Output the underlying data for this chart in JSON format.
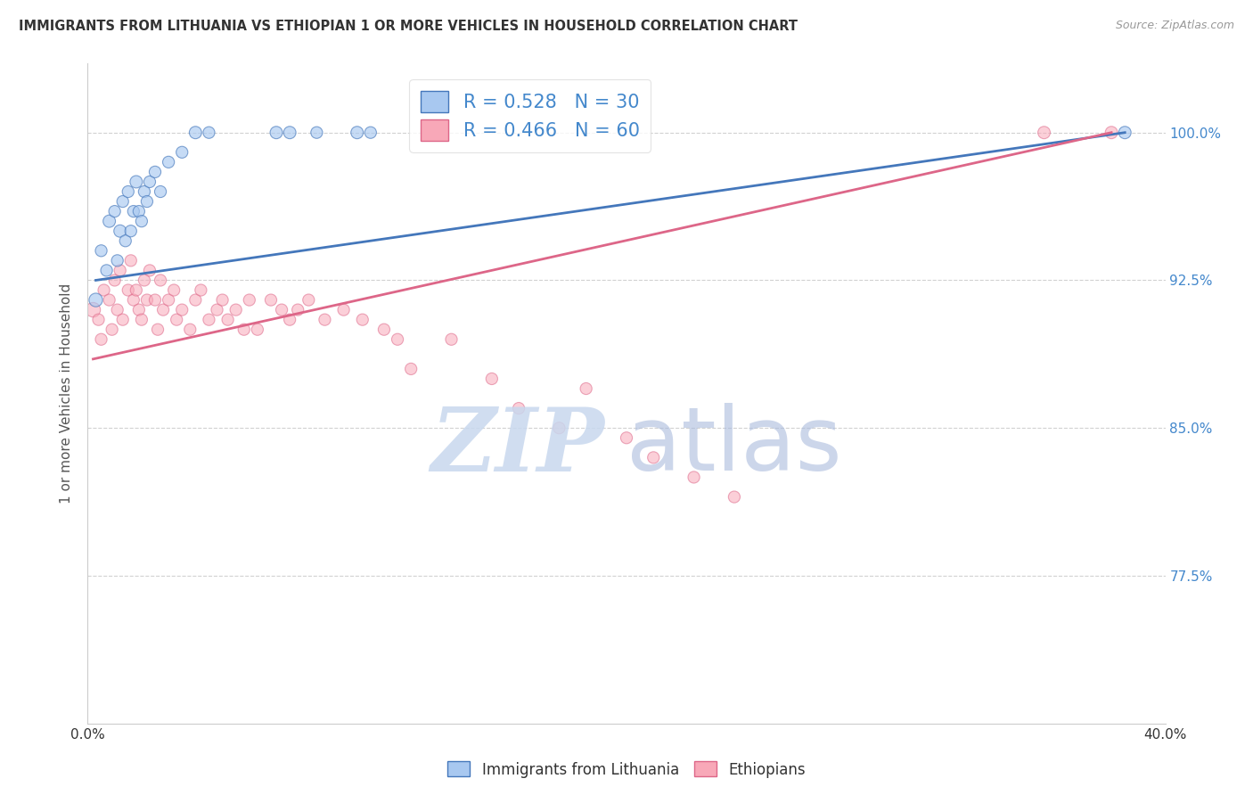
{
  "title": "IMMIGRANTS FROM LITHUANIA VS ETHIOPIAN 1 OR MORE VEHICLES IN HOUSEHOLD CORRELATION CHART",
  "source": "Source: ZipAtlas.com",
  "ylabel": "1 or more Vehicles in Household",
  "ylabel_right_ticks": [
    77.5,
    85.0,
    92.5,
    100.0
  ],
  "xlim": [
    0.0,
    40.0
  ],
  "ylim": [
    70.0,
    103.5
  ],
  "legend1_label": "R = 0.528   N = 30",
  "legend2_label": "R = 0.466   N = 60",
  "blue_color": "#A8C8F0",
  "pink_color": "#F8A8B8",
  "blue_line_color": "#4477BB",
  "pink_line_color": "#DD6688",
  "background_color": "#FFFFFF",
  "lithuania_x": [
    0.3,
    0.5,
    0.7,
    0.8,
    1.0,
    1.1,
    1.2,
    1.3,
    1.4,
    1.5,
    1.6,
    1.7,
    1.8,
    1.9,
    2.0,
    2.1,
    2.2,
    2.3,
    2.5,
    2.7,
    3.0,
    3.5,
    4.0,
    4.5,
    7.0,
    7.5,
    8.5,
    10.0,
    10.5,
    38.5
  ],
  "lithuania_y": [
    91.5,
    94.0,
    93.0,
    95.5,
    96.0,
    93.5,
    95.0,
    96.5,
    94.5,
    97.0,
    95.0,
    96.0,
    97.5,
    96.0,
    95.5,
    97.0,
    96.5,
    97.5,
    98.0,
    97.0,
    98.5,
    99.0,
    100.0,
    100.0,
    100.0,
    100.0,
    100.0,
    100.0,
    100.0,
    100.0
  ],
  "lithuania_sizes": [
    120,
    90,
    90,
    100,
    90,
    90,
    100,
    90,
    90,
    90,
    90,
    90,
    100,
    90,
    90,
    90,
    90,
    90,
    90,
    90,
    90,
    90,
    100,
    90,
    100,
    100,
    90,
    100,
    90,
    100
  ],
  "ethiopian_x": [
    0.2,
    0.4,
    0.5,
    0.6,
    0.8,
    0.9,
    1.0,
    1.1,
    1.2,
    1.3,
    1.5,
    1.6,
    1.7,
    1.8,
    1.9,
    2.0,
    2.1,
    2.2,
    2.3,
    2.5,
    2.6,
    2.7,
    2.8,
    3.0,
    3.2,
    3.3,
    3.5,
    3.8,
    4.0,
    4.2,
    4.5,
    4.8,
    5.0,
    5.2,
    5.5,
    5.8,
    6.0,
    6.3,
    6.8,
    7.2,
    7.5,
    7.8,
    8.2,
    8.8,
    9.5,
    10.2,
    11.0,
    11.5,
    12.0,
    13.5,
    15.0,
    16.0,
    17.5,
    18.5,
    20.0,
    21.0,
    22.5,
    24.0,
    35.5,
    38.0
  ],
  "ethiopian_y": [
    91.0,
    90.5,
    89.5,
    92.0,
    91.5,
    90.0,
    92.5,
    91.0,
    93.0,
    90.5,
    92.0,
    93.5,
    91.5,
    92.0,
    91.0,
    90.5,
    92.5,
    91.5,
    93.0,
    91.5,
    90.0,
    92.5,
    91.0,
    91.5,
    92.0,
    90.5,
    91.0,
    90.0,
    91.5,
    92.0,
    90.5,
    91.0,
    91.5,
    90.5,
    91.0,
    90.0,
    91.5,
    90.0,
    91.5,
    91.0,
    90.5,
    91.0,
    91.5,
    90.5,
    91.0,
    90.5,
    90.0,
    89.5,
    88.0,
    89.5,
    87.5,
    86.0,
    85.0,
    87.0,
    84.5,
    83.5,
    82.5,
    81.5,
    100.0,
    100.0
  ],
  "ethiopian_sizes": [
    140,
    90,
    90,
    90,
    90,
    90,
    90,
    90,
    90,
    90,
    90,
    90,
    90,
    90,
    90,
    90,
    90,
    90,
    90,
    90,
    90,
    90,
    90,
    90,
    90,
    90,
    90,
    90,
    90,
    90,
    90,
    90,
    90,
    90,
    90,
    90,
    90,
    90,
    90,
    90,
    90,
    90,
    90,
    90,
    90,
    90,
    90,
    90,
    90,
    90,
    90,
    90,
    90,
    90,
    90,
    90,
    90,
    90,
    100,
    100
  ],
  "blue_trend_x": [
    0.3,
    38.5
  ],
  "blue_trend_y": [
    92.5,
    100.0
  ],
  "pink_trend_x": [
    0.2,
    38.0
  ],
  "pink_trend_y": [
    88.5,
    100.0
  ]
}
